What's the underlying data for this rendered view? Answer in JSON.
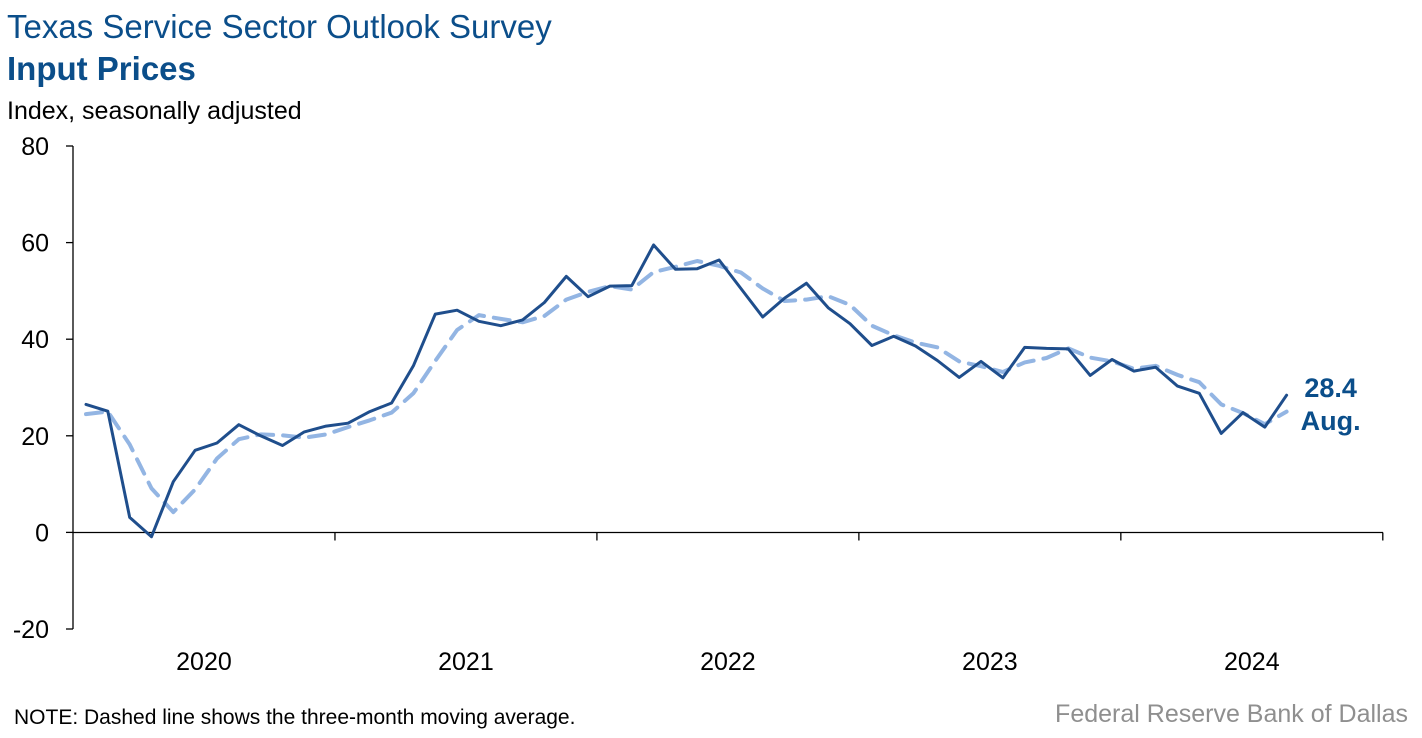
{
  "header": {
    "title": "Texas Service Sector Outlook Survey",
    "subtitle": "Input Prices",
    "ylabel": "Index, seasonally adjusted"
  },
  "footer": {
    "note": "NOTE: Dashed line shows the three-month moving average.",
    "source": "Federal Reserve Bank of Dallas"
  },
  "colors": {
    "title": "#0b4e8a",
    "index_line": "#1f4e8c",
    "moving_average_line": "#93b5e3",
    "axis": "#000000",
    "source_text": "#8f8f8f"
  },
  "chart_data": {
    "type": "line",
    "title": "Input Prices",
    "ylabel": "Index, seasonally adjusted",
    "ylim": [
      -20,
      80
    ],
    "yticks": [
      -20,
      0,
      20,
      40,
      60,
      80
    ],
    "xticks": [
      "2020",
      "2021",
      "2022",
      "2023",
      "2024"
    ],
    "x_start": "2020-01",
    "grid": false,
    "end_annotation": {
      "value": "28.4",
      "month": "Aug."
    },
    "series": [
      {
        "style": "solid",
        "values": [
          26.5,
          25.1,
          3.1,
          -0.9,
          10.5,
          17.0,
          18.5,
          22.3,
          20.0,
          18.0,
          20.8,
          22.0,
          22.6,
          25.0,
          26.8,
          34.5,
          45.2,
          46.0,
          43.7,
          42.8,
          44.0,
          47.6,
          53.0,
          48.8,
          51.0,
          51.1,
          59.5,
          54.5,
          54.6,
          56.4,
          50.5,
          44.6,
          48.5,
          51.6,
          46.5,
          43.2,
          38.7,
          40.6,
          38.6,
          35.6,
          32.1,
          35.4,
          32.0,
          38.3,
          38.1,
          38.0,
          32.5,
          35.8,
          33.4,
          34.2,
          30.3,
          28.8,
          20.5,
          24.8,
          21.8,
          28.4
        ]
      },
      {
        "style": "dashed",
        "values": [
          24.5,
          25.0,
          18.2,
          9.1,
          4.2,
          8.9,
          15.3,
          19.3,
          20.3,
          20.1,
          19.6,
          20.3,
          21.8,
          23.2,
          24.8,
          28.8,
          35.5,
          41.9,
          45.0,
          44.2,
          43.5,
          44.8,
          48.2,
          49.8,
          51.0,
          50.3,
          53.9,
          55.0,
          56.2,
          55.2,
          53.8,
          50.5,
          47.9,
          48.2,
          48.9,
          47.1,
          42.8,
          40.8,
          39.3,
          38.3,
          35.4,
          34.4,
          33.2,
          35.2,
          36.1,
          38.1,
          36.2,
          35.4,
          33.9,
          34.5,
          32.6,
          31.1,
          26.5,
          24.7,
          22.4,
          25.0
        ]
      }
    ]
  }
}
